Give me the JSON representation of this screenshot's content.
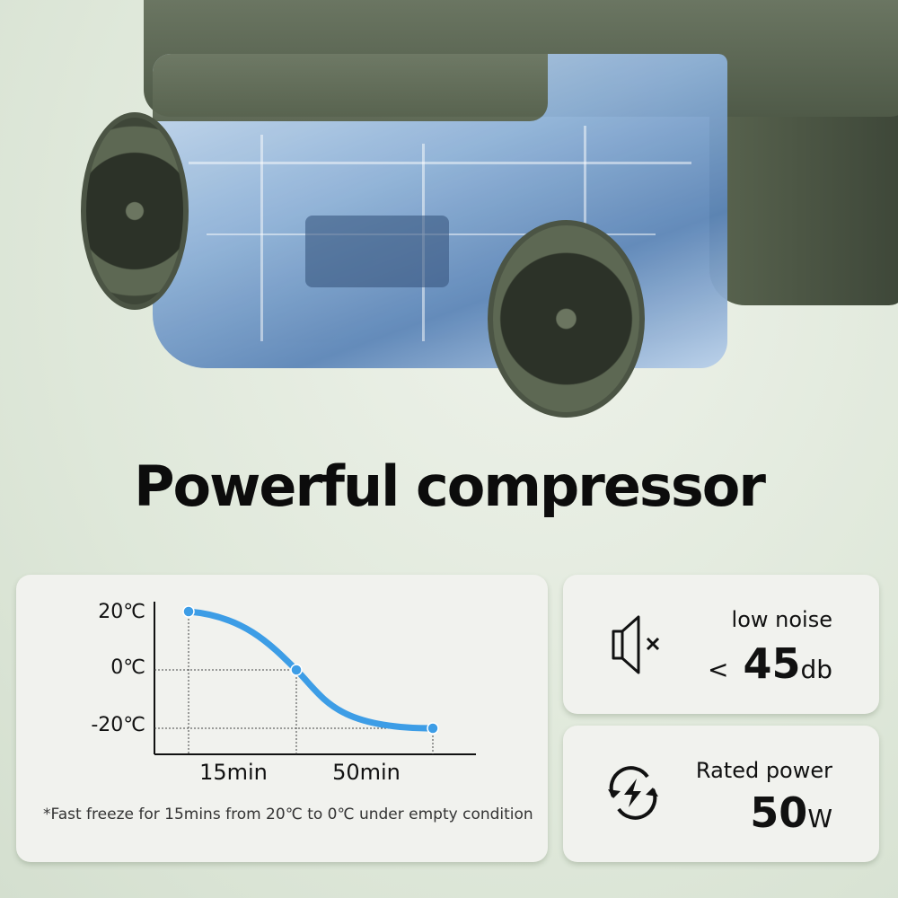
{
  "headline": "Powerful compressor",
  "chart_data": {
    "type": "line",
    "values": [
      20,
      0,
      -20
    ],
    "y_tick_labels": [
      "20℃",
      "0℃",
      "-20℃"
    ],
    "segment_labels": [
      "15min",
      "50min"
    ],
    "line_color": "#3d9de6",
    "grid": "dashed guide lines"
  },
  "footnote": "*Fast freeze for 15mins from 20℃ to 0℃ under empty condition",
  "features": [
    {
      "icon": "speaker-mute-icon",
      "label": "low noise",
      "prefix": "<",
      "value": "45",
      "unit": "db"
    },
    {
      "icon": "power-cycle-icon",
      "label": "Rated power",
      "prefix": "",
      "value": "50",
      "unit": "W"
    }
  ]
}
